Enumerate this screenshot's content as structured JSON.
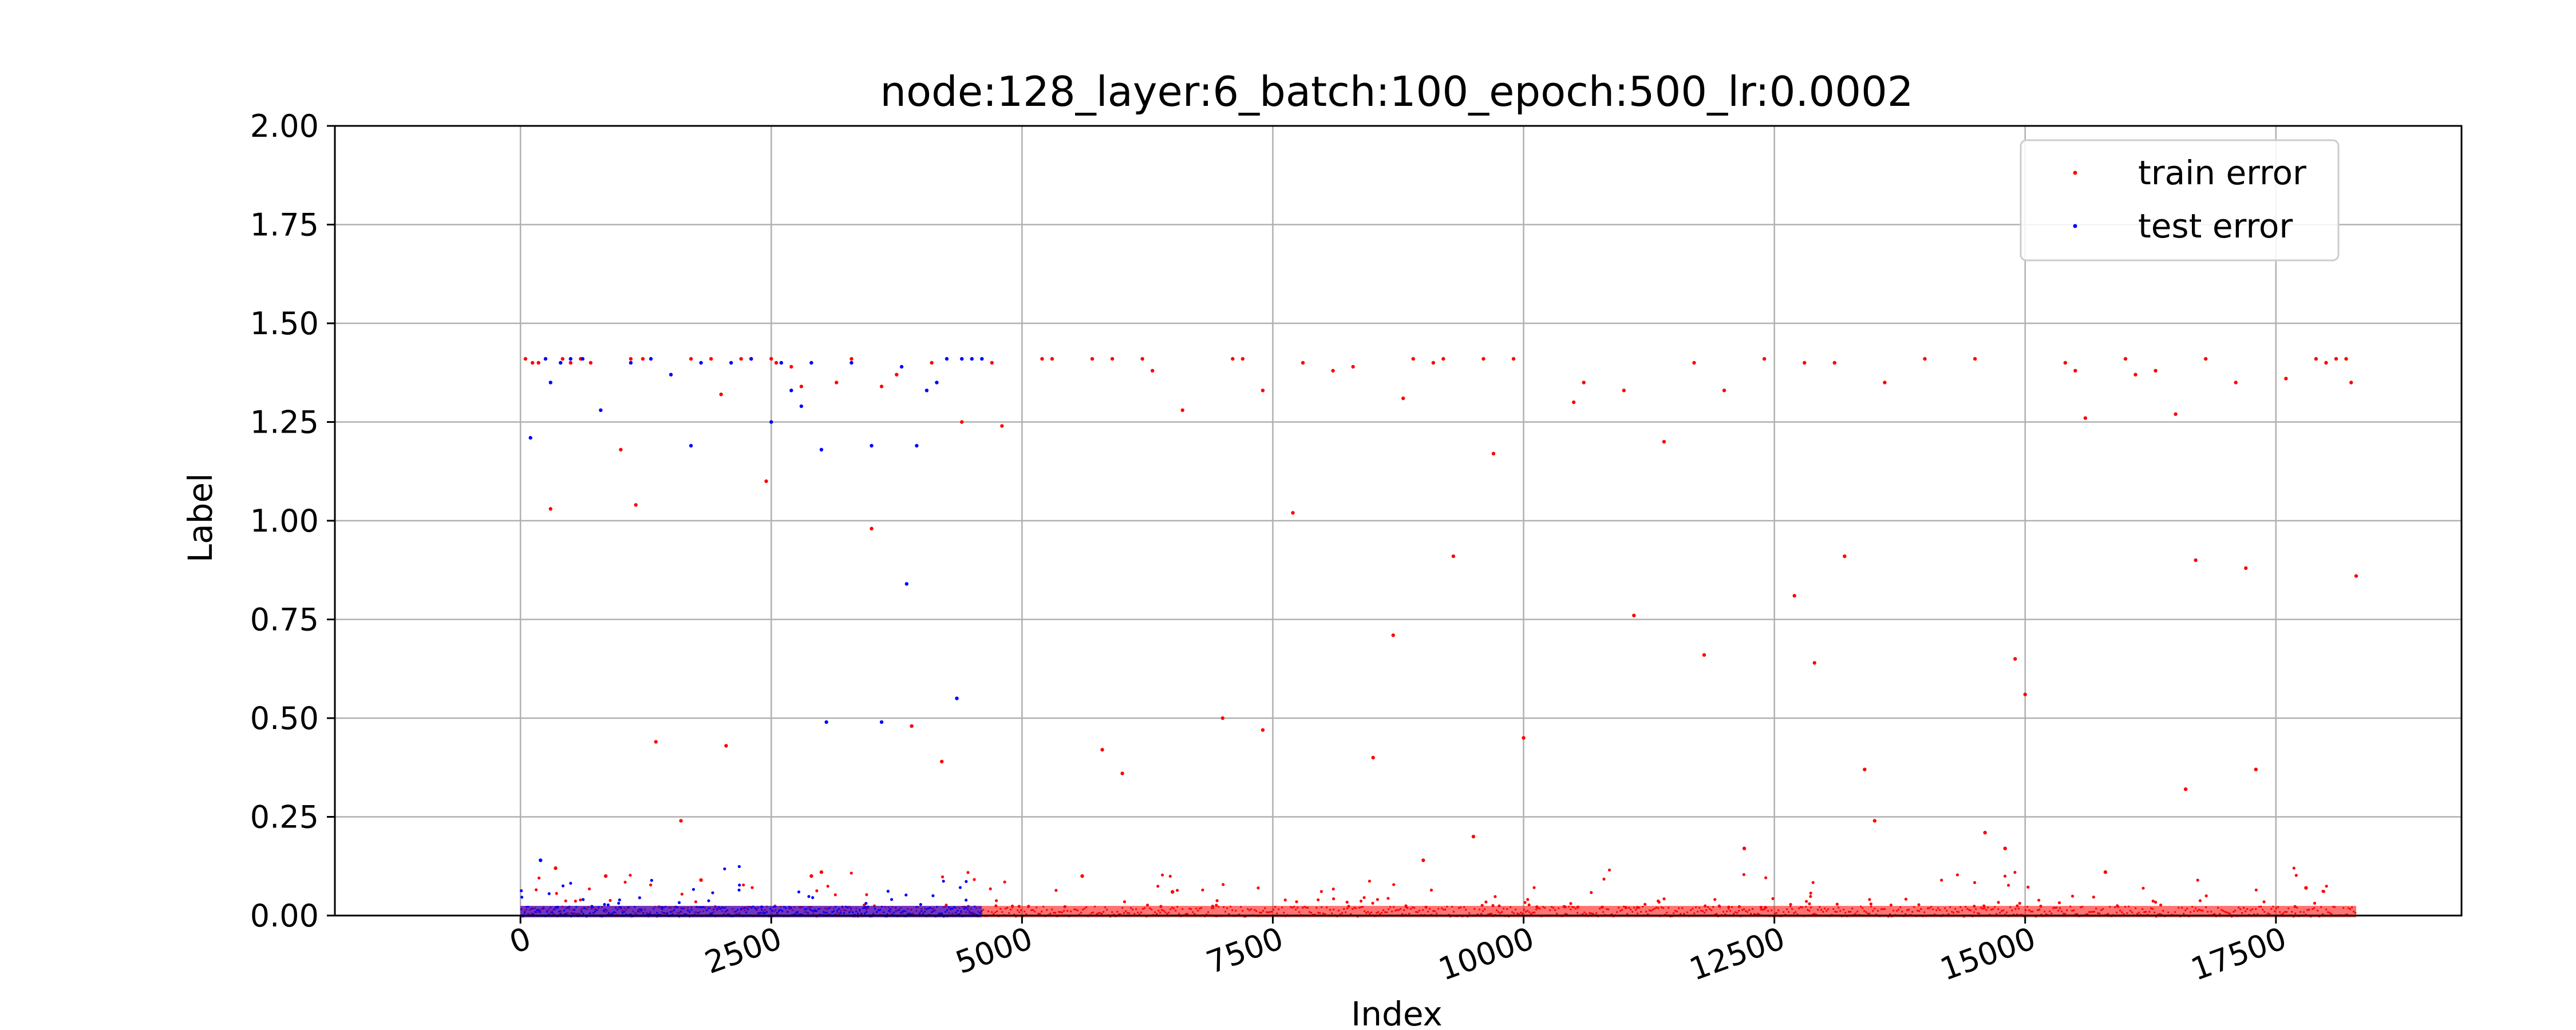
{
  "chart_data": {
    "type": "scatter",
    "title": "node:128_layer:6_batch:100_epoch:500_lr:0.0002",
    "xlabel": "Index",
    "ylabel": "Label",
    "xlim": [
      -1850,
      19350
    ],
    "ylim": [
      0,
      2
    ],
    "grid": true,
    "legend_position": "top-right",
    "xticks": [
      0,
      2500,
      5000,
      7500,
      10000,
      12500,
      15000,
      17500
    ],
    "xtick_labels": [
      "0",
      "2500",
      "5000",
      "7500",
      "10000",
      "12500",
      "15000",
      "17500"
    ],
    "xtick_rotation": -20,
    "yticks": [
      0,
      0.25,
      0.5,
      0.75,
      1.0,
      1.25,
      1.5,
      1.75,
      2.0
    ],
    "ytick_labels": [
      "0.00",
      "0.25",
      "0.50",
      "0.75",
      "1.00",
      "1.25",
      "1.50",
      "1.75",
      "2.00"
    ],
    "series": [
      {
        "name": "train error",
        "color": "#ff0000",
        "x_range": [
          0,
          18300
        ],
        "baseline": 0.01,
        "outliers": [
          [
            50,
            1.41
          ],
          [
            120,
            1.4
          ],
          [
            180,
            1.4
          ],
          [
            300,
            1.03
          ],
          [
            350,
            0.12
          ],
          [
            420,
            1.41
          ],
          [
            500,
            1.4
          ],
          [
            600,
            1.41
          ],
          [
            700,
            1.4
          ],
          [
            850,
            0.1
          ],
          [
            1000,
            1.18
          ],
          [
            1100,
            1.41
          ],
          [
            1150,
            1.04
          ],
          [
            1220,
            1.41
          ],
          [
            1350,
            0.44
          ],
          [
            1600,
            0.24
          ],
          [
            1700,
            1.41
          ],
          [
            1800,
            0.09
          ],
          [
            1900,
            1.41
          ],
          [
            2000,
            1.32
          ],
          [
            2050,
            0.43
          ],
          [
            2200,
            1.41
          ],
          [
            2300,
            1.41
          ],
          [
            2450,
            1.1
          ],
          [
            2500,
            1.41
          ],
          [
            2550,
            1.4
          ],
          [
            2700,
            1.39
          ],
          [
            2800,
            1.34
          ],
          [
            2900,
            0.1
          ],
          [
            3000,
            0.11
          ],
          [
            3150,
            1.35
          ],
          [
            3300,
            1.41
          ],
          [
            3500,
            0.98
          ],
          [
            3600,
            1.34
          ],
          [
            3750,
            1.37
          ],
          [
            3900,
            0.48
          ],
          [
            4100,
            1.4
          ],
          [
            4200,
            0.39
          ],
          [
            4400,
            1.25
          ],
          [
            4700,
            1.4
          ],
          [
            4800,
            1.24
          ],
          [
            5200,
            1.41
          ],
          [
            5300,
            1.41
          ],
          [
            5600,
            0.1
          ],
          [
            5700,
            1.41
          ],
          [
            5800,
            0.42
          ],
          [
            5900,
            1.41
          ],
          [
            6000,
            0.36
          ],
          [
            6200,
            1.41
          ],
          [
            6300,
            1.38
          ],
          [
            6500,
            0.06
          ],
          [
            6600,
            1.28
          ],
          [
            7000,
            0.5
          ],
          [
            7100,
            1.41
          ],
          [
            7200,
            1.41
          ],
          [
            7400,
            1.33
          ],
          [
            7400,
            0.47
          ],
          [
            7700,
            1.02
          ],
          [
            7800,
            1.4
          ],
          [
            8100,
            1.38
          ],
          [
            8300,
            1.39
          ],
          [
            8500,
            0.4
          ],
          [
            8700,
            0.71
          ],
          [
            8800,
            1.31
          ],
          [
            8900,
            1.41
          ],
          [
            9000,
            0.14
          ],
          [
            9100,
            1.4
          ],
          [
            9200,
            1.41
          ],
          [
            9300,
            0.91
          ],
          [
            9500,
            0.2
          ],
          [
            9600,
            1.41
          ],
          [
            9700,
            1.17
          ],
          [
            9900,
            1.41
          ],
          [
            10000,
            0.45
          ],
          [
            10500,
            1.3
          ],
          [
            10600,
            1.35
          ],
          [
            11000,
            1.33
          ],
          [
            11100,
            0.76
          ],
          [
            11400,
            1.2
          ],
          [
            11700,
            1.4
          ],
          [
            11800,
            0.66
          ],
          [
            12000,
            1.33
          ],
          [
            12200,
            0.17
          ],
          [
            12400,
            1.41
          ],
          [
            12700,
            0.81
          ],
          [
            12800,
            1.4
          ],
          [
            12900,
            0.64
          ],
          [
            13100,
            1.4
          ],
          [
            13200,
            0.91
          ],
          [
            13400,
            0.37
          ],
          [
            13500,
            0.24
          ],
          [
            13600,
            1.35
          ],
          [
            14000,
            1.41
          ],
          [
            14500,
            1.41
          ],
          [
            14600,
            0.21
          ],
          [
            14800,
            0.17
          ],
          [
            14900,
            0.65
          ],
          [
            15000,
            0.56
          ],
          [
            15400,
            1.4
          ],
          [
            15500,
            1.38
          ],
          [
            15600,
            1.26
          ],
          [
            15800,
            0.11
          ],
          [
            16000,
            1.41
          ],
          [
            16100,
            1.37
          ],
          [
            16300,
            1.38
          ],
          [
            16500,
            1.27
          ],
          [
            16600,
            0.32
          ],
          [
            16700,
            0.9
          ],
          [
            16800,
            1.41
          ],
          [
            17100,
            1.35
          ],
          [
            17200,
            0.88
          ],
          [
            17300,
            0.37
          ],
          [
            17600,
            1.36
          ],
          [
            17800,
            0.07
          ],
          [
            17900,
            1.41
          ],
          [
            18000,
            1.4
          ],
          [
            18100,
            1.41
          ],
          [
            18200,
            1.41
          ],
          [
            18250,
            1.35
          ],
          [
            18300,
            0.86
          ]
        ]
      },
      {
        "name": "test error",
        "color": "#0000ff",
        "x_range": [
          0,
          4600
        ],
        "baseline": 0.01,
        "outliers": [
          [
            100,
            1.21
          ],
          [
            200,
            0.14
          ],
          [
            250,
            1.41
          ],
          [
            300,
            1.35
          ],
          [
            400,
            1.4
          ],
          [
            500,
            1.41
          ],
          [
            620,
            1.41
          ],
          [
            800,
            1.28
          ],
          [
            1100,
            1.4
          ],
          [
            1300,
            1.41
          ],
          [
            1500,
            1.37
          ],
          [
            1700,
            1.19
          ],
          [
            1800,
            1.4
          ],
          [
            2100,
            1.4
          ],
          [
            2300,
            1.41
          ],
          [
            2500,
            1.25
          ],
          [
            2600,
            1.4
          ],
          [
            2700,
            1.33
          ],
          [
            2800,
            1.29
          ],
          [
            2900,
            1.4
          ],
          [
            3000,
            1.18
          ],
          [
            3050,
            0.49
          ],
          [
            3300,
            1.4
          ],
          [
            3500,
            1.19
          ],
          [
            3600,
            0.49
          ],
          [
            3800,
            1.39
          ],
          [
            3850,
            0.84
          ],
          [
            3950,
            1.19
          ],
          [
            4050,
            1.33
          ],
          [
            4150,
            1.35
          ],
          [
            4250,
            1.41
          ],
          [
            4350,
            0.55
          ],
          [
            4400,
            1.41
          ],
          [
            4500,
            1.41
          ],
          [
            4600,
            1.41
          ]
        ]
      }
    ]
  }
}
